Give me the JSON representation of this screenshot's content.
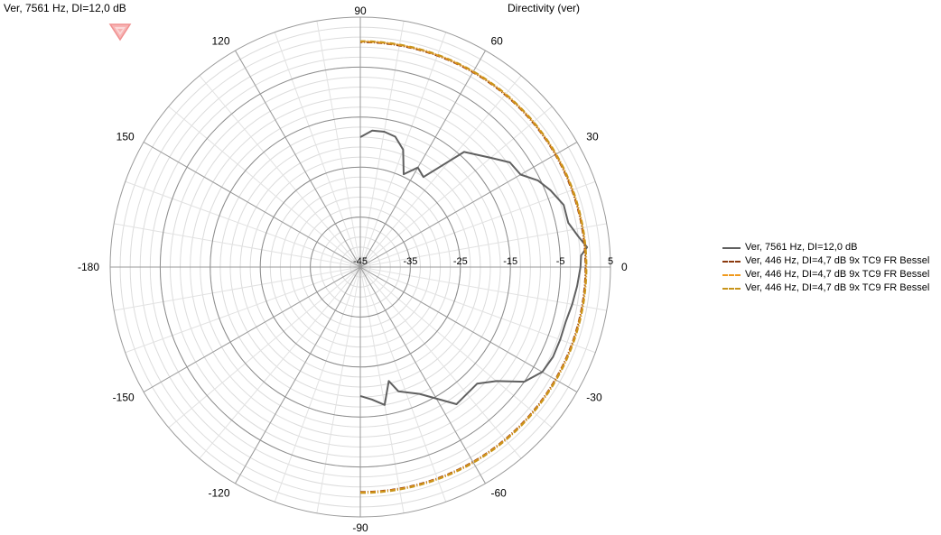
{
  "header": {
    "left_title": "Ver, 7561 Hz, DI=12,0 dB",
    "right_title": "Directivity (ver)"
  },
  "logo": {
    "icon": "heart-shield-logo-icon",
    "color": "#f4a3a3"
  },
  "chart_data": {
    "type": "polar",
    "angle_labels": [
      {
        "deg": 90,
        "label": "90"
      },
      {
        "deg": 60,
        "label": "60"
      },
      {
        "deg": 30,
        "label": "30"
      },
      {
        "deg": 0,
        "label": "0"
      },
      {
        "deg": -30,
        "label": "-30"
      },
      {
        "deg": -60,
        "label": "-60"
      },
      {
        "deg": -90,
        "label": "-90"
      },
      {
        "deg": -120,
        "label": "-120"
      },
      {
        "deg": -150,
        "label": "-150"
      },
      {
        "deg": 180,
        "label": "-180"
      },
      {
        "deg": 150,
        "label": "150"
      },
      {
        "deg": 120,
        "label": "120"
      }
    ],
    "radial_range": [
      -45,
      5
    ],
    "radial_ticks": [
      -45,
      -35,
      -25,
      -15,
      -5,
      5
    ],
    "grid": true,
    "legend_position": "right",
    "series": [
      {
        "name": "Ver, 7561 Hz, DI=12,0 dB",
        "color": "#606060",
        "dash": "none",
        "points": [
          [
            -90,
            -19.2
          ],
          [
            -85,
            -18.4
          ],
          [
            -80,
            -17.0
          ],
          [
            -76,
            -21.5
          ],
          [
            -73,
            -19.0
          ],
          [
            -65,
            -17.0
          ],
          [
            -55,
            -11.5
          ],
          [
            -45,
            -12.0
          ],
          [
            -40,
            -9.5
          ],
          [
            -35,
            -5.0
          ],
          [
            -30,
            -3.0
          ],
          [
            -25,
            -2.5
          ],
          [
            -20,
            -2.5
          ],
          [
            -15,
            -2.5
          ],
          [
            -10,
            -2.0
          ],
          [
            -5,
            -1.5
          ],
          [
            0,
            -1.0
          ],
          [
            3,
            -0.8
          ],
          [
            5,
            0.5
          ],
          [
            8,
            -1.0
          ],
          [
            12,
            -2.5
          ],
          [
            17,
            -2.5
          ],
          [
            22,
            -4.0
          ],
          [
            26,
            -5.5
          ],
          [
            30,
            -8.0
          ],
          [
            35,
            -8.5
          ],
          [
            40,
            -11.0
          ],
          [
            48,
            -14.0
          ],
          [
            55,
            -23.0
          ],
          [
            60,
            -22.0
          ],
          [
            65,
            -24.5
          ],
          [
            70,
            -20.0
          ],
          [
            75,
            -18.0
          ],
          [
            80,
            -17.5
          ],
          [
            85,
            -17.6
          ],
          [
            90,
            -19.0
          ]
        ]
      },
      {
        "name": "Ver, 446 Hz, DI=4,7 dB 9x TC9 FR Bessel",
        "color": "#8b3a0e",
        "dash": "6,2,1,2",
        "points": [
          [
            -90,
            0.0
          ],
          [
            -60,
            0.0
          ],
          [
            -30,
            0.0
          ],
          [
            -15,
            0.0
          ],
          [
            0,
            0.0
          ],
          [
            15,
            0.0
          ],
          [
            30,
            0.0
          ],
          [
            60,
            0.0
          ],
          [
            90,
            0.0
          ]
        ]
      },
      {
        "name": "Ver, 446 Hz, DI=4,7 dB 9x TC9 FR Bessel",
        "color": "#f09a1e",
        "dash": "6,2,1,2",
        "points": [
          [
            -90,
            0.1
          ],
          [
            -60,
            0.1
          ],
          [
            -30,
            0.1
          ],
          [
            -15,
            0.1
          ],
          [
            0,
            0.1
          ],
          [
            15,
            0.1
          ],
          [
            30,
            0.1
          ],
          [
            60,
            0.1
          ],
          [
            90,
            0.1
          ]
        ]
      },
      {
        "name": "Ver, 446 Hz, DI=4,7 dB 9x TC9 FR Bessel",
        "color": "#c8941a",
        "dash": "6,2,1,2",
        "points": [
          [
            -90,
            0.2
          ],
          [
            -60,
            0.2
          ],
          [
            -30,
            0.2
          ],
          [
            -15,
            0.2
          ],
          [
            0,
            0.2
          ],
          [
            15,
            0.2
          ],
          [
            30,
            0.2
          ],
          [
            60,
            0.2
          ],
          [
            90,
            0.2
          ]
        ]
      }
    ]
  },
  "legend": {
    "items": [
      {
        "label": "Ver, 7561 Hz, DI=12,0 dB"
      },
      {
        "label": "Ver, 446 Hz, DI=4,7 dB 9x TC9 FR Bessel"
      },
      {
        "label": "Ver, 446 Hz, DI=4,7 dB 9x TC9 FR Bessel"
      },
      {
        "label": "Ver, 446 Hz, DI=4,7 dB 9x TC9 FR Bessel"
      }
    ]
  }
}
